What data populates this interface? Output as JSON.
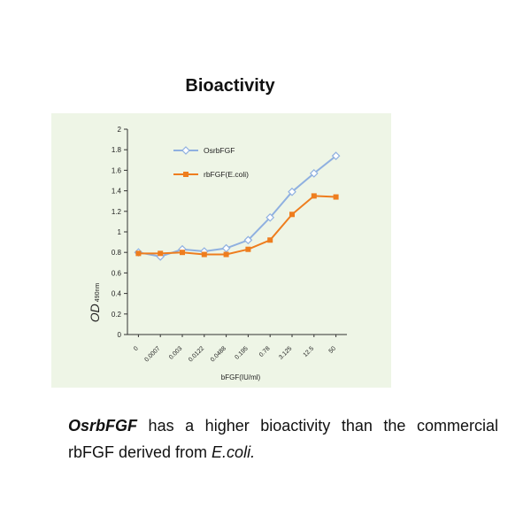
{
  "chart_data": {
    "type": "line",
    "title": "Bioactivity",
    "xlabel": "bFGF(IU/ml)",
    "ylabel": "OD",
    "ylabel_sub": "490nm",
    "categories": [
      "0",
      "0.0007",
      "0.003",
      "0.0122",
      "0.0488",
      "0.195",
      "0.78",
      "3.125",
      "12.5",
      "50"
    ],
    "ylim": [
      0,
      2
    ],
    "yticks": [
      "0",
      "0.2",
      "0.4",
      "0.6",
      "0.8",
      "1",
      "1.2",
      "1.4",
      "1.6",
      "1.8",
      "2"
    ],
    "grid": false,
    "legend_position": "top-left",
    "series": [
      {
        "name": "OsrbFGF",
        "color": "#8fb0e0",
        "marker": "diamond",
        "values": [
          0.8,
          0.76,
          0.83,
          0.81,
          0.84,
          0.92,
          1.14,
          1.39,
          1.57,
          1.74
        ]
      },
      {
        "name": "rbFGF(E.coli)",
        "color": "#ee7d1e",
        "marker": "square",
        "values": [
          0.79,
          0.79,
          0.8,
          0.78,
          0.78,
          0.83,
          0.92,
          1.17,
          1.35,
          1.34
        ]
      }
    ]
  },
  "caption": {
    "lead": "OsrbFGF",
    "text": " has a higher bioactivity than the commercial rbFGF derived from ",
    "source": "E.coli."
  }
}
